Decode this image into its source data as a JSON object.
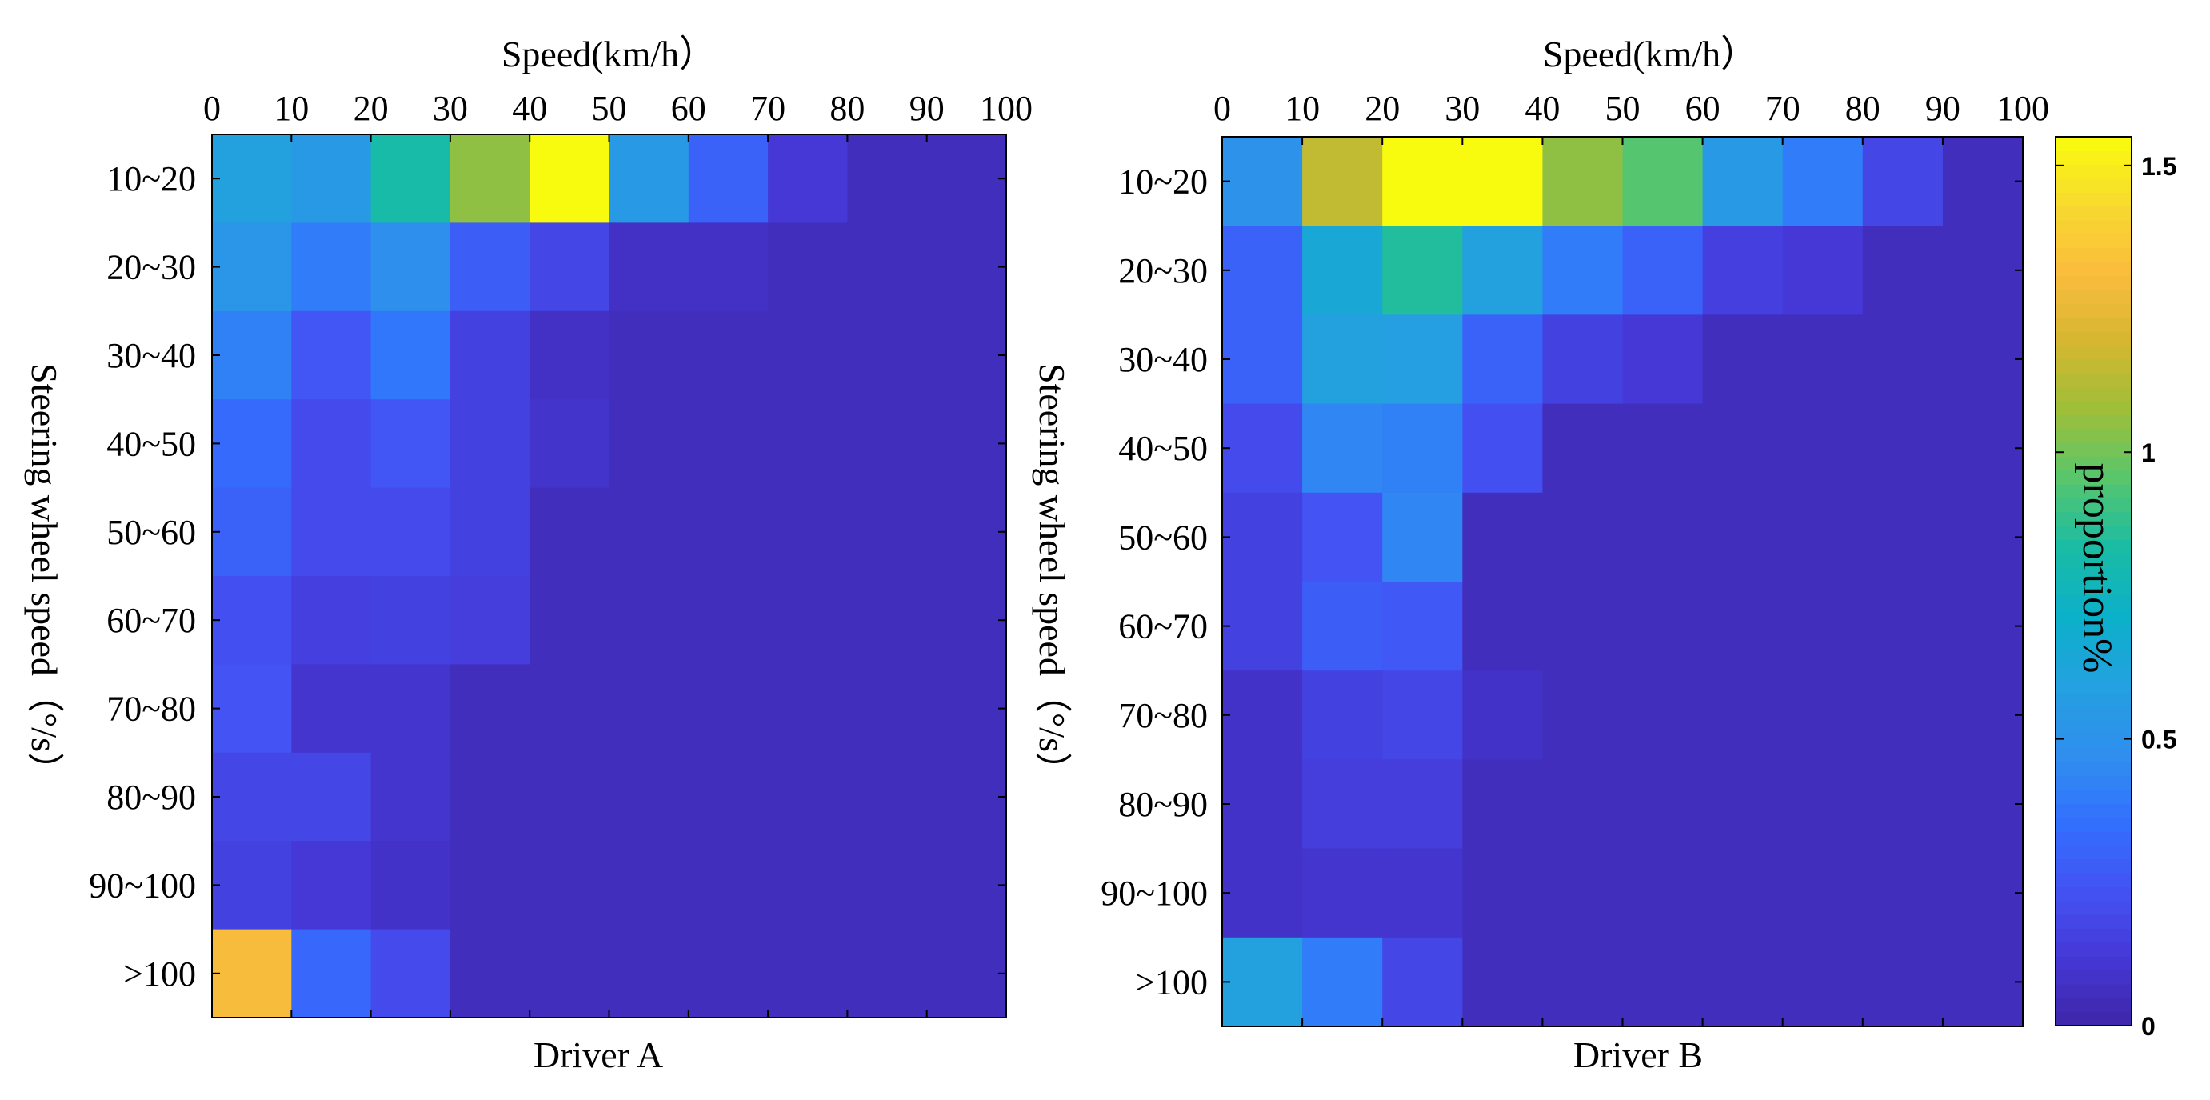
{
  "chart_data": [
    {
      "type": "heatmap",
      "title": "Driver A",
      "xlabel": "Speed(km/h）",
      "ylabel": "Steering wheel speed（°/s）",
      "x_ticks": [
        "0",
        "10",
        "20",
        "30",
        "40",
        "50",
        "60",
        "70",
        "80",
        "90",
        "100"
      ],
      "y_categories": [
        "10~20",
        "20~30",
        "30~40",
        "40~50",
        "50~60",
        "60~70",
        "70~80",
        "80~90",
        "90~100",
        ">100"
      ],
      "values": [
        [
          0.6,
          0.55,
          0.82,
          1.05,
          1.55,
          0.55,
          0.3,
          0.12,
          0.05,
          0.05
        ],
        [
          0.52,
          0.4,
          0.48,
          0.28,
          0.18,
          0.07,
          0.07,
          0.05,
          0.05,
          0.05
        ],
        [
          0.42,
          0.25,
          0.38,
          0.16,
          0.07,
          0.05,
          0.05,
          0.05,
          0.05,
          0.05
        ],
        [
          0.33,
          0.2,
          0.25,
          0.16,
          0.09,
          0.05,
          0.05,
          0.05,
          0.05,
          0.05
        ],
        [
          0.3,
          0.2,
          0.2,
          0.16,
          0.05,
          0.05,
          0.05,
          0.05,
          0.05,
          0.05
        ],
        [
          0.22,
          0.15,
          0.16,
          0.14,
          0.05,
          0.05,
          0.05,
          0.05,
          0.05,
          0.05
        ],
        [
          0.24,
          0.1,
          0.1,
          0.05,
          0.05,
          0.05,
          0.05,
          0.05,
          0.05,
          0.05
        ],
        [
          0.18,
          0.18,
          0.1,
          0.05,
          0.05,
          0.05,
          0.05,
          0.05,
          0.05,
          0.05
        ],
        [
          0.16,
          0.12,
          0.08,
          0.05,
          0.05,
          0.05,
          0.05,
          0.05,
          0.05,
          0.05
        ],
        [
          1.3,
          0.32,
          0.2,
          0.05,
          0.05,
          0.05,
          0.05,
          0.05,
          0.05,
          0.05
        ]
      ],
      "vmin": 0,
      "vmax": 1.55
    },
    {
      "type": "heatmap",
      "title": "Driver B",
      "xlabel": "Speed(km/h）",
      "ylabel": "Steering wheel speed（°/s）",
      "x_ticks": [
        "0",
        "10",
        "20",
        "30",
        "40",
        "50",
        "60",
        "70",
        "80",
        "90",
        "100"
      ],
      "y_categories": [
        "10~20",
        "20~30",
        "30~40",
        "40~50",
        "50~60",
        "60~70",
        "70~80",
        "80~90",
        "90~100",
        ">100"
      ],
      "values": [
        [
          0.5,
          1.15,
          1.55,
          1.55,
          1.05,
          0.95,
          0.55,
          0.4,
          0.18,
          0.05
        ],
        [
          0.3,
          0.65,
          0.85,
          0.6,
          0.4,
          0.3,
          0.15,
          0.12,
          0.05,
          0.05
        ],
        [
          0.3,
          0.6,
          0.58,
          0.3,
          0.16,
          0.12,
          0.05,
          0.05,
          0.05,
          0.05
        ],
        [
          0.2,
          0.44,
          0.42,
          0.22,
          0.05,
          0.05,
          0.05,
          0.05,
          0.05,
          0.05
        ],
        [
          0.16,
          0.24,
          0.44,
          0.05,
          0.05,
          0.05,
          0.05,
          0.05,
          0.05,
          0.05
        ],
        [
          0.16,
          0.28,
          0.26,
          0.05,
          0.05,
          0.05,
          0.05,
          0.05,
          0.05,
          0.05
        ],
        [
          0.08,
          0.16,
          0.18,
          0.08,
          0.05,
          0.05,
          0.05,
          0.05,
          0.05,
          0.05
        ],
        [
          0.08,
          0.14,
          0.14,
          0.05,
          0.05,
          0.05,
          0.05,
          0.05,
          0.05,
          0.05
        ],
        [
          0.08,
          0.1,
          0.1,
          0.05,
          0.05,
          0.05,
          0.05,
          0.05,
          0.05,
          0.05
        ],
        [
          0.6,
          0.4,
          0.18,
          0.05,
          0.05,
          0.05,
          0.05,
          0.05,
          0.05,
          0.05
        ]
      ],
      "vmin": 0,
      "vmax": 1.55
    }
  ],
  "colorbar": {
    "label": "proportion%",
    "ticks": [
      "0",
      "0.5",
      "1",
      "1.5"
    ],
    "tick_values": [
      0,
      0.5,
      1,
      1.5
    ],
    "vmin": 0,
    "vmax": 1.55,
    "colormap": "parula",
    "colormap_stops": [
      "#3e26a8",
      "#4538d7",
      "#4353f4",
      "#3271fe",
      "#2f8fed",
      "#24a1e0",
      "#0bb0c9",
      "#1abca3",
      "#57c66d",
      "#9ebf39",
      "#d5b730",
      "#fbbc3d",
      "#f8da30",
      "#f9fb0e"
    ]
  }
}
